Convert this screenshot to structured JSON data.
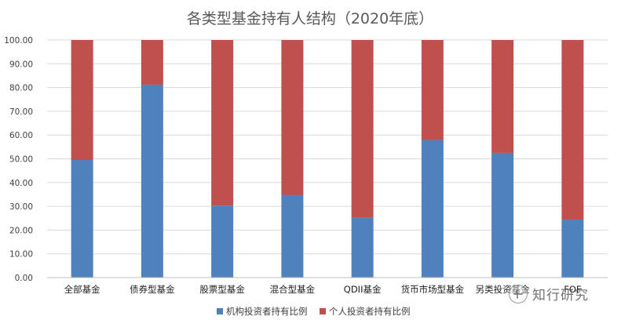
{
  "chart_data": {
    "type": "bar",
    "stacked": true,
    "title": "各类型基金持有人结构（2020年底）",
    "categories": [
      "全部基金",
      "债券型基金",
      "股票型基金",
      "混合型基金",
      "QDII基金",
      "货币市场型基金",
      "另类投资基金",
      "FOF"
    ],
    "series": [
      {
        "name": "机构投资者持有比例",
        "color": "#4f81bd",
        "values": [
          49.5,
          81.2,
          30.3,
          34.8,
          25.2,
          57.9,
          52.5,
          24.4
        ]
      },
      {
        "name": "个人投资者持有比例",
        "color": "#c0504d",
        "values": [
          50.5,
          18.8,
          69.7,
          65.2,
          74.8,
          42.1,
          47.5,
          75.6
        ]
      }
    ],
    "yticks": [
      "0.00",
      "10.00",
      "20.00",
      "30.00",
      "40.00",
      "50.00",
      "60.00",
      "70.00",
      "80.00",
      "90.00",
      "100.00"
    ],
    "ylim": [
      0,
      100
    ],
    "grid": true,
    "legend_position": "bottom"
  },
  "watermark": {
    "text": "知行研究"
  }
}
